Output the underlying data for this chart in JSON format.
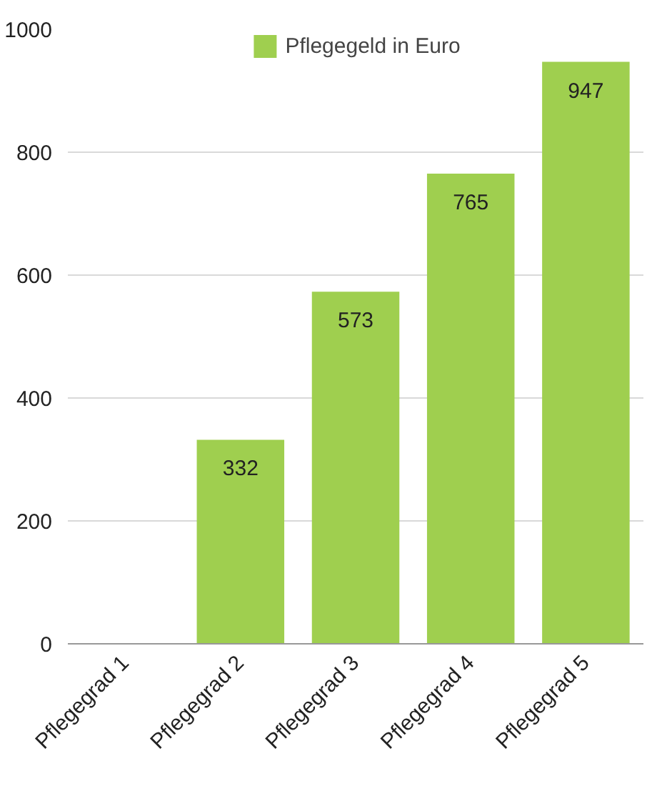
{
  "chart_data": {
    "type": "bar",
    "categories": [
      "Pflegegrad 1",
      "Pflegegrad 2",
      "Pflegegrad 3",
      "Pflegegrad 4",
      "Pflegegrad 5"
    ],
    "series": [
      {
        "name": "Pflegegeld in Euro",
        "color": "#9fcf4f",
        "values": [
          0,
          332,
          573,
          765,
          947
        ],
        "value_labels": [
          null,
          "332",
          "573",
          "765",
          "947"
        ]
      }
    ],
    "ylim": [
      0,
      1000
    ],
    "yticks": [
      0,
      200,
      400,
      600,
      800,
      1000
    ],
    "grid": "y",
    "legend": "top"
  }
}
